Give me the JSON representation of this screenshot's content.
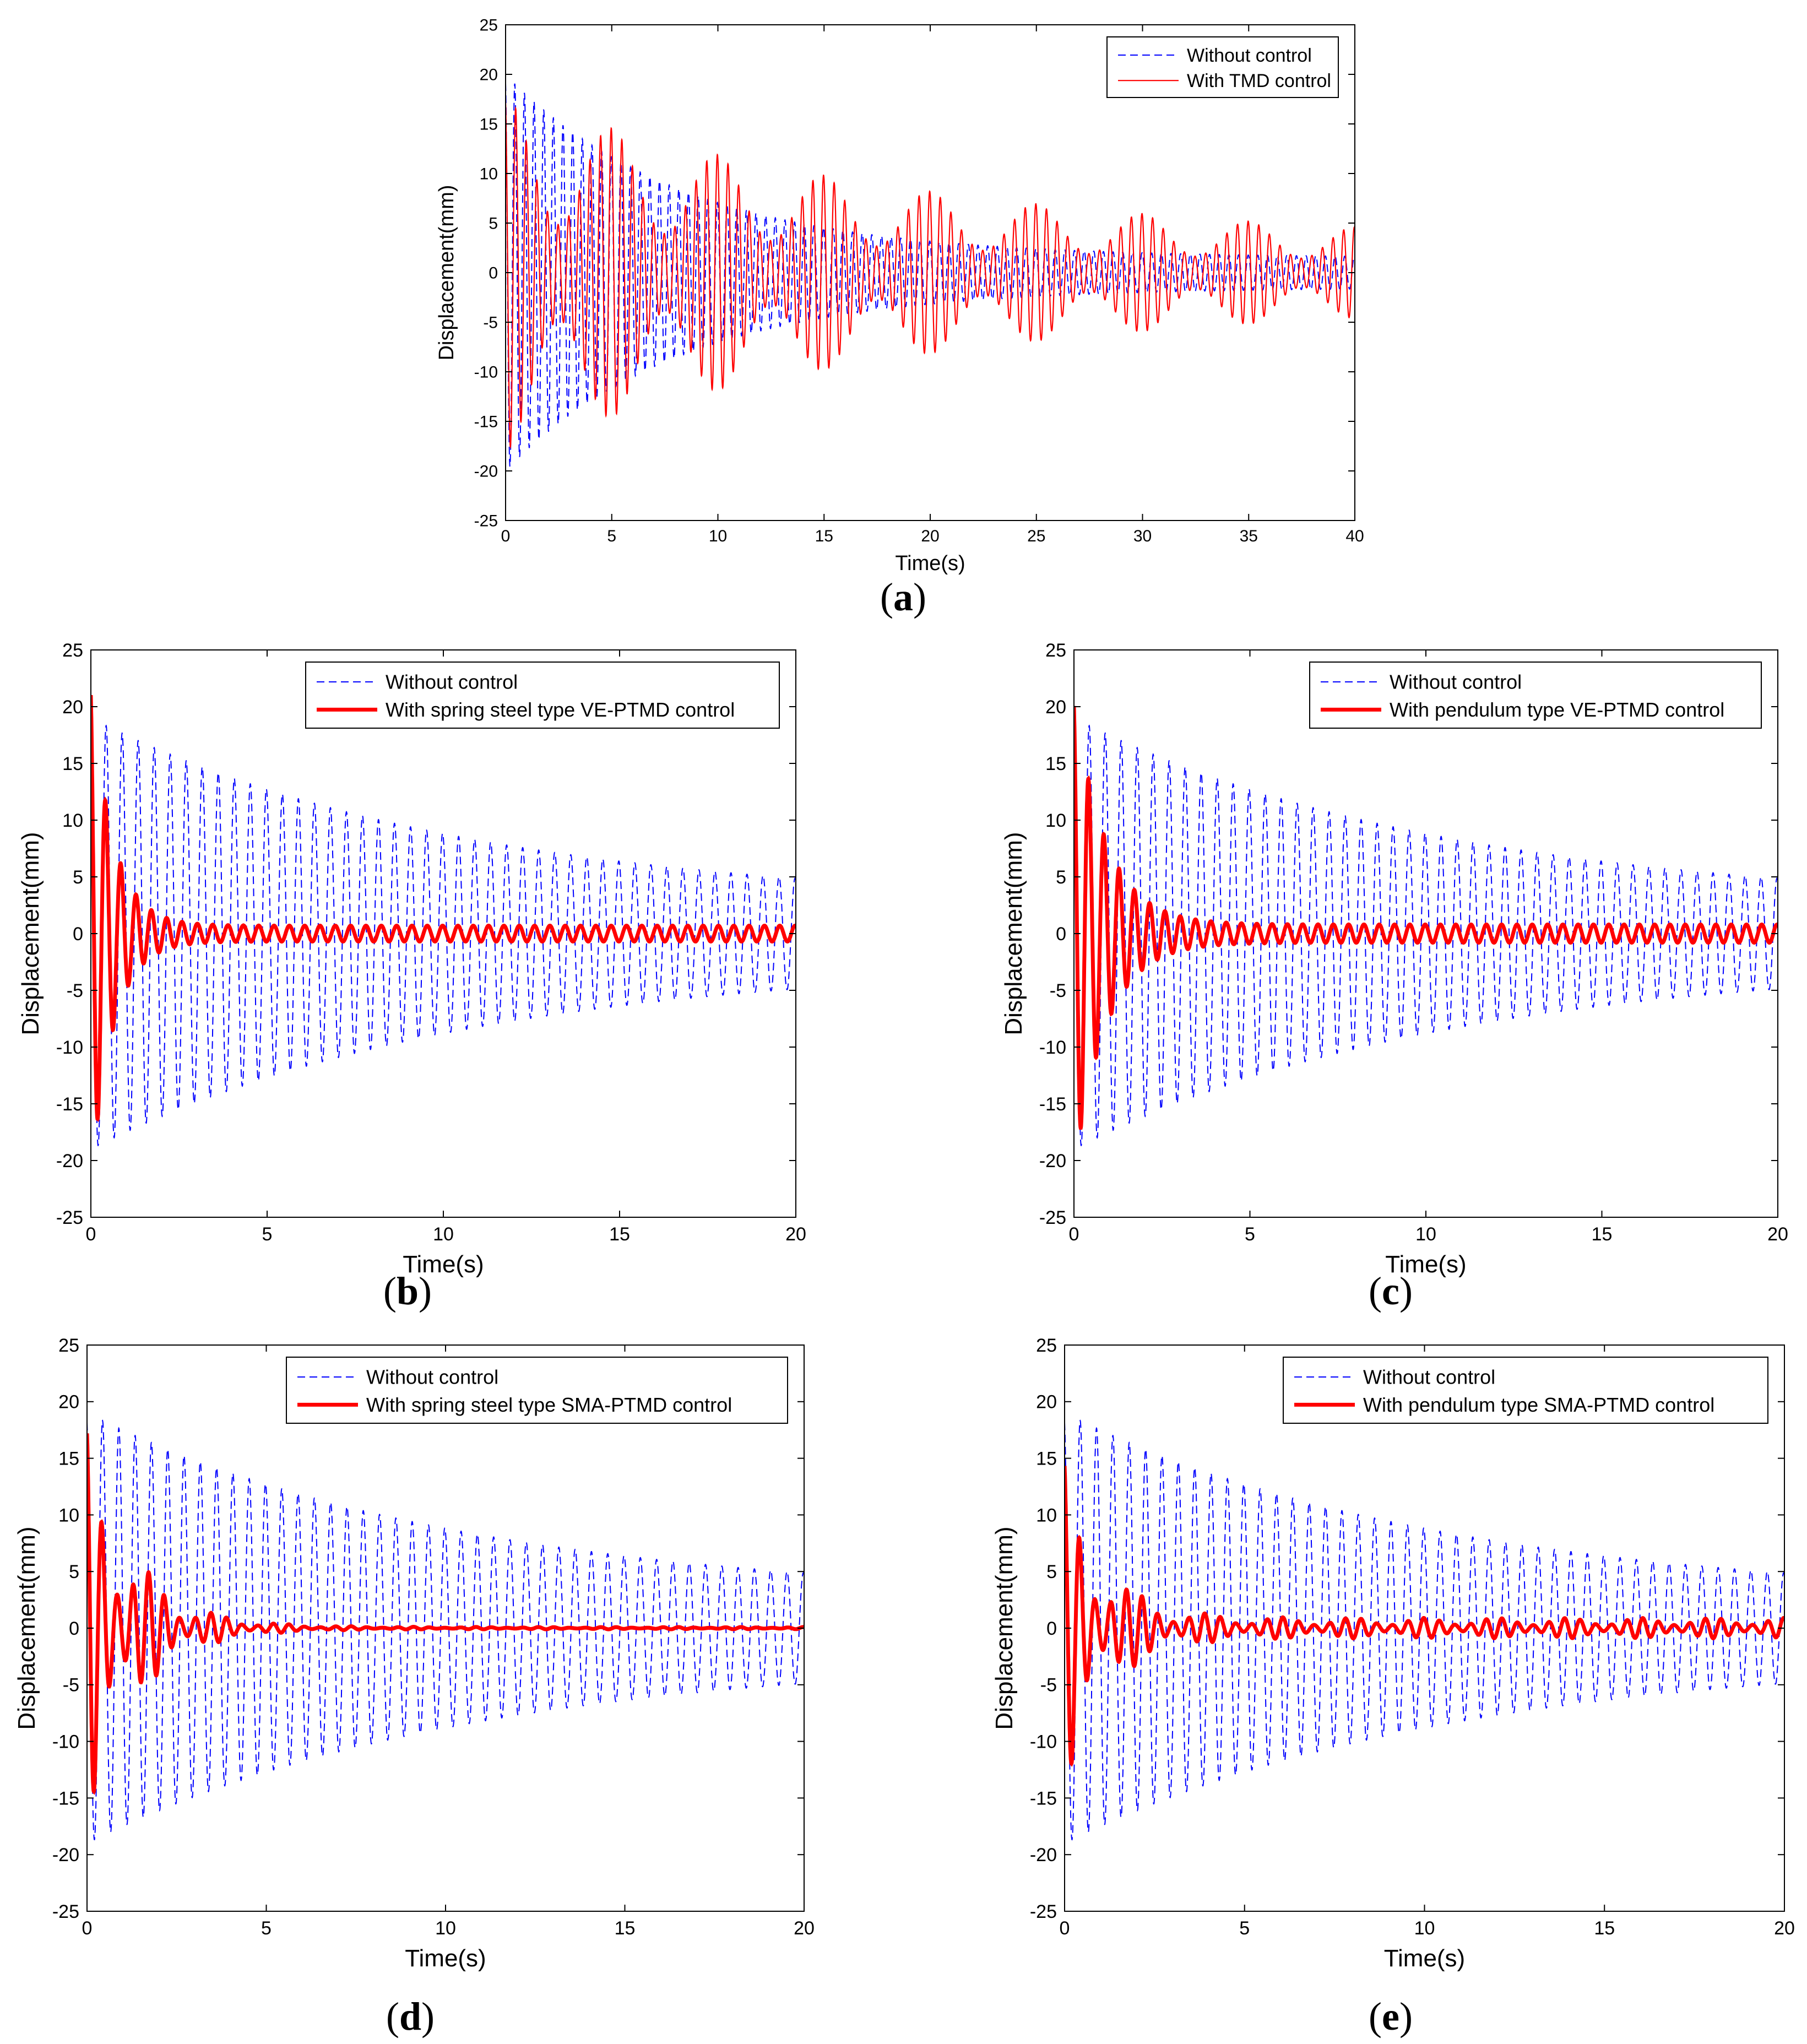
{
  "figure": {
    "colors": {
      "without": "#0000ff",
      "with": "#ff0000",
      "axis": "#000000"
    }
  },
  "chart_data": [
    {
      "id": "a",
      "type": "line",
      "panel_label": "a",
      "xlabel": "Time(s)",
      "ylabel": "Displacement(mm)",
      "xlim": [
        0,
        40
      ],
      "ylim": [
        -25,
        25
      ],
      "xticks": [
        0,
        5,
        10,
        15,
        20,
        25,
        30,
        35,
        40
      ],
      "yticks": [
        -25,
        -20,
        -15,
        -10,
        -5,
        0,
        5,
        10,
        15,
        20,
        25
      ],
      "legend": "top-right",
      "series": [
        {
          "name": "Without control",
          "style": "dashed",
          "color": "#0000ff",
          "amp0": 20,
          "decay": 0.12,
          "floor": 1.5,
          "freq": 2.2
        },
        {
          "name": "With TMD control",
          "style": "solid-thin",
          "color": "#ff0000",
          "amp0": 18,
          "decay": 0.05,
          "floor": 2.5,
          "freq": 2.0,
          "beat": 0.2
        }
      ]
    },
    {
      "id": "b",
      "type": "line",
      "panel_label": "b",
      "xlabel": "Time(s)",
      "ylabel": "Displacement(mm)",
      "xlim": [
        0,
        20
      ],
      "ylim": [
        -25,
        25
      ],
      "xticks": [
        0,
        5,
        10,
        15,
        20
      ],
      "yticks": [
        -25,
        -20,
        -15,
        -10,
        -5,
        0,
        5,
        10,
        15,
        20,
        25
      ],
      "legend": "top-right",
      "series": [
        {
          "name": "Without control",
          "style": "dashed",
          "color": "#0000ff",
          "amp0": 19,
          "decay": 0.095,
          "floor": 2.4,
          "freq": 2.2
        },
        {
          "name": "With spring steel type VE-PTMD control",
          "style": "solid-thick",
          "color": "#ff0000",
          "amp0": 22,
          "decay": 1.6,
          "floor": 0.7,
          "freq": 2.3
        }
      ]
    },
    {
      "id": "c",
      "type": "line",
      "panel_label": "c",
      "xlabel": "Time(s)",
      "ylabel": "Displacement(mm)",
      "xlim": [
        0,
        20
      ],
      "ylim": [
        -25,
        25
      ],
      "xticks": [
        0,
        5,
        10,
        15,
        20
      ],
      "yticks": [
        -25,
        -20,
        -15,
        -10,
        -5,
        0,
        5,
        10,
        15,
        20,
        25
      ],
      "legend": "top-right",
      "series": [
        {
          "name": "Without control",
          "style": "dashed",
          "color": "#0000ff",
          "amp0": 19,
          "decay": 0.095,
          "floor": 2.4,
          "freq": 2.2
        },
        {
          "name": "With pendulum type VE-PTMD control",
          "style": "solid-thick",
          "color": "#ff0000",
          "amp0": 21,
          "decay": 1.1,
          "floor": 0.8,
          "freq": 2.3
        }
      ]
    },
    {
      "id": "d",
      "type": "line",
      "panel_label": "d",
      "xlabel": "Time(s)",
      "ylabel": "Displacement(mm)",
      "xlim": [
        0,
        20
      ],
      "ylim": [
        -25,
        25
      ],
      "xticks": [
        0,
        5,
        10,
        15,
        20
      ],
      "yticks": [
        -25,
        -20,
        -15,
        -10,
        -5,
        0,
        5,
        10,
        15,
        20,
        25
      ],
      "legend": "top-right",
      "series": [
        {
          "name": "Without control",
          "style": "dashed",
          "color": "#0000ff",
          "amp0": 19,
          "decay": 0.095,
          "floor": 2.4,
          "freq": 2.2
        },
        {
          "name": "With spring steel type SMA-PTMD control",
          "style": "solid-thick",
          "color": "#ff0000",
          "amp0": 18,
          "decay": 0.75,
          "floor": 0.1,
          "freq": 2.3,
          "beat": 0.55
        }
      ]
    },
    {
      "id": "e",
      "type": "line",
      "panel_label": "e",
      "xlabel": "Time(s)",
      "ylabel": "Displacement(mm)",
      "xlim": [
        0,
        20
      ],
      "ylim": [
        -25,
        25
      ],
      "xticks": [
        0,
        5,
        10,
        15,
        20
      ],
      "yticks": [
        -25,
        -20,
        -15,
        -10,
        -5,
        0,
        5,
        10,
        15,
        20,
        25
      ],
      "legend": "top-right",
      "series": [
        {
          "name": "Without control",
          "style": "dashed",
          "color": "#0000ff",
          "amp0": 19,
          "decay": 0.095,
          "floor": 2.4,
          "freq": 2.2
        },
        {
          "name": "With pendulum type SMA-PTMD control",
          "style": "solid-thick",
          "color": "#ff0000",
          "amp0": 15,
          "decay": 0.9,
          "floor": 0.9,
          "freq": 2.3,
          "beat": 0.5
        }
      ]
    }
  ]
}
